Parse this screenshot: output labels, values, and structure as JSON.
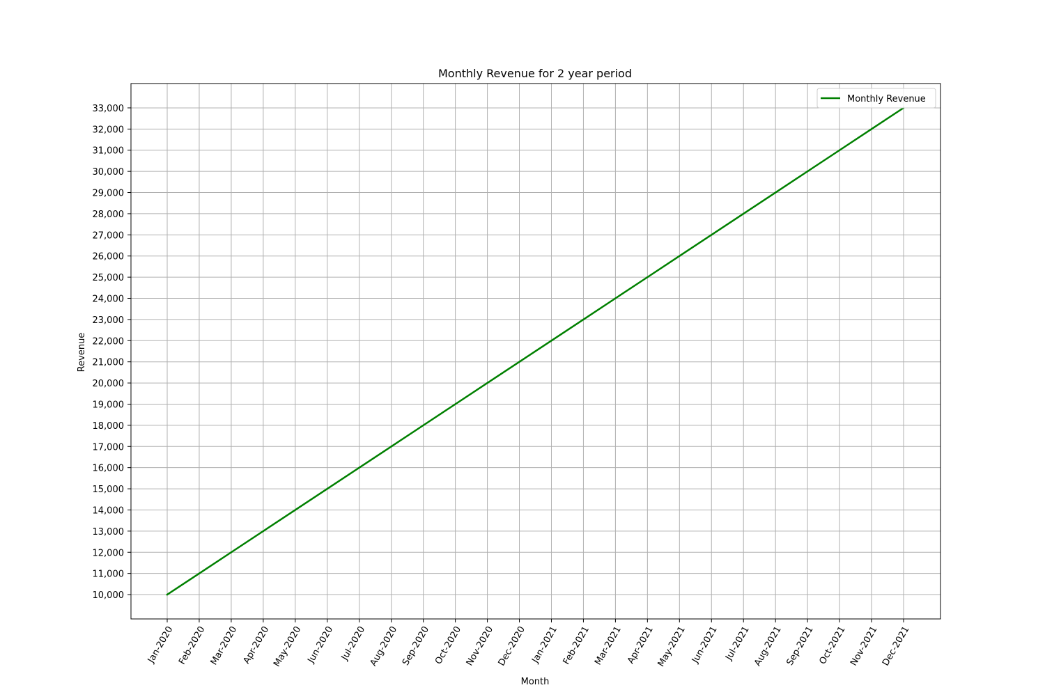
{
  "chart_data": {
    "type": "line",
    "title": "Monthly Revenue for 2 year period",
    "xlabel": "Month",
    "ylabel": "Revenue",
    "categories": [
      "Jan-2020",
      "Feb-2020",
      "Mar-2020",
      "Apr-2020",
      "May-2020",
      "Jun-2020",
      "Jul-2020",
      "Aug-2020",
      "Sep-2020",
      "Oct-2020",
      "Nov-2020",
      "Dec-2020",
      "Jan-2021",
      "Feb-2021",
      "Mar-2021",
      "Apr-2021",
      "May-2021",
      "Jun-2021",
      "Jul-2021",
      "Aug-2021",
      "Sep-2021",
      "Oct-2021",
      "Nov-2021",
      "Dec-2021"
    ],
    "series": [
      {
        "name": "Monthly Revenue",
        "color": "#008000",
        "values": [
          10000,
          11000,
          12000,
          13000,
          14000,
          15000,
          16000,
          17000,
          18000,
          19000,
          20000,
          21000,
          22000,
          23000,
          24000,
          25000,
          26000,
          27000,
          28000,
          29000,
          30000,
          31000,
          32000,
          33000
        ]
      }
    ],
    "yticks": [
      10000,
      11000,
      12000,
      13000,
      14000,
      15000,
      16000,
      17000,
      18000,
      19000,
      20000,
      21000,
      22000,
      23000,
      24000,
      25000,
      26000,
      27000,
      28000,
      29000,
      30000,
      31000,
      32000,
      33000
    ],
    "ytick_labels": [
      "10,000",
      "11,000",
      "12,000",
      "13,000",
      "14,000",
      "15,000",
      "16,000",
      "17,000",
      "18,000",
      "19,000",
      "20,000",
      "21,000",
      "22,000",
      "23,000",
      "24,000",
      "25,000",
      "26,000",
      "27,000",
      "28,000",
      "29,000",
      "30,000",
      "31,000",
      "32,000",
      "33,000"
    ],
    "ylim": [
      8850,
      34150
    ],
    "grid": true,
    "legend_position": "top-right",
    "grid_color": "#b0b0b0"
  }
}
